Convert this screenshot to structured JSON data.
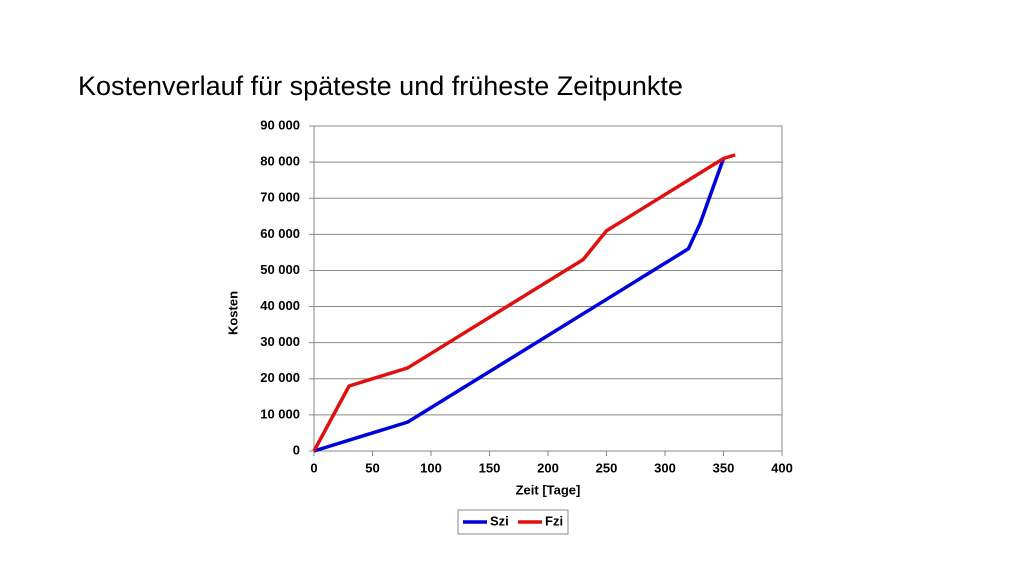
{
  "chart_data": {
    "type": "line",
    "title": "Kostenverlauf für späteste und früheste Zeitpunkte",
    "x_label": "Zeit [Tage]",
    "y_label": "Kosten",
    "xlim": [
      0,
      400
    ],
    "xticks": [
      0,
      50,
      100,
      150,
      200,
      250,
      300,
      350,
      400
    ],
    "ylim": [
      0,
      90000
    ],
    "yticks": [
      0,
      {
        "value": 10000,
        "label": "10 000"
      },
      {
        "value": 20000,
        "label": "20 000"
      },
      {
        "value": 30000,
        "label": "30 000"
      },
      {
        "value": 40000,
        "label": "40 000"
      },
      {
        "value": 50000,
        "label": "50 000"
      },
      {
        "value": 60000,
        "label": "60 000"
      },
      {
        "value": 70000,
        "label": "70 000"
      },
      {
        "value": 80000,
        "label": "80 000"
      },
      {
        "value": 90000,
        "label": "90 000"
      }
    ],
    "grid": true,
    "legend": "bottom",
    "series": [
      {
        "name": "Szi",
        "color": "#0000dd",
        "x": [
          0,
          80,
          320,
          330,
          350
        ],
        "values": [
          0,
          8000,
          56000,
          63000,
          81000
        ]
      },
      {
        "name": "Fzi",
        "color": "#e01010",
        "x": [
          0,
          30,
          80,
          230,
          250,
          350,
          360
        ],
        "values": [
          0,
          18000,
          23000,
          53000,
          61000,
          81000,
          82000
        ]
      }
    ]
  }
}
